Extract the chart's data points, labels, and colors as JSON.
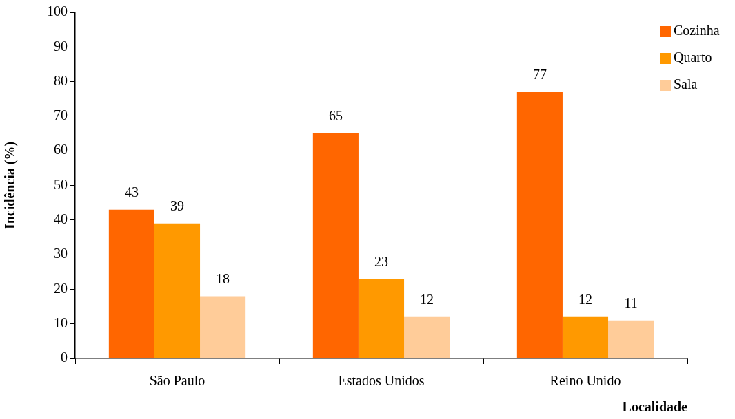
{
  "chart_data": {
    "type": "bar",
    "xlabel": "Localidade",
    "ylabel": "Incidência (%)",
    "categories": [
      "São Paulo",
      "Estados Unidos",
      "Reino Unido"
    ],
    "series": [
      {
        "name": "Cozinha",
        "color": "#ff6600",
        "values": [
          43,
          65,
          77
        ]
      },
      {
        "name": "Quarto",
        "color": "#ff9900",
        "values": [
          39,
          23,
          12
        ]
      },
      {
        "name": "Sala",
        "color": "#ffcc99",
        "values": [
          18,
          12,
          11
        ]
      }
    ],
    "ylim": [
      0,
      100
    ],
    "yticks": [
      0,
      10,
      20,
      30,
      40,
      50,
      60,
      70,
      80,
      90,
      100
    ],
    "grid": false,
    "legend": "top right",
    "data_labels": true
  }
}
